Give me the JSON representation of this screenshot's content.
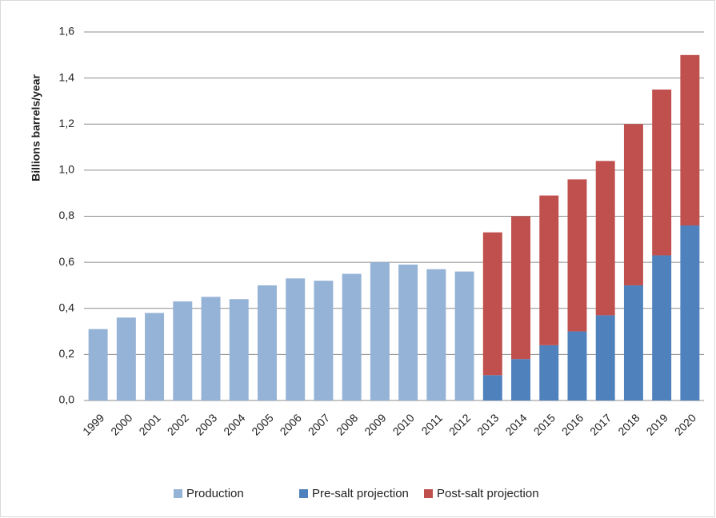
{
  "chart_data": {
    "type": "stacked-bar",
    "y_label": "Billions barrels/year",
    "categories": [
      "1999",
      "2000",
      "2001",
      "2002",
      "2003",
      "2004",
      "2005",
      "2006",
      "2007",
      "2008",
      "2009",
      "2010",
      "2011",
      "2012",
      "2013",
      "2014",
      "2015",
      "2016",
      "2017",
      "2018",
      "2019",
      "2020"
    ],
    "series": [
      {
        "name": "Production",
        "color": "#95b3d7",
        "values": [
          0.31,
          0.36,
          0.38,
          0.43,
          0.45,
          0.44,
          0.5,
          0.53,
          0.52,
          0.55,
          0.6,
          0.59,
          0.57,
          0.56,
          null,
          null,
          null,
          null,
          null,
          null,
          null,
          null
        ]
      },
      {
        "name": "Pre-salt projection",
        "color": "#4f81bd",
        "values": [
          null,
          null,
          null,
          null,
          null,
          null,
          null,
          null,
          null,
          null,
          null,
          null,
          null,
          null,
          0.11,
          0.18,
          0.24,
          0.3,
          0.37,
          0.5,
          0.63,
          0.76
        ]
      },
      {
        "name": "Post-salt projection",
        "color": "#c0504d",
        "values": [
          null,
          null,
          null,
          null,
          null,
          null,
          null,
          null,
          null,
          null,
          null,
          null,
          null,
          null,
          0.62,
          0.62,
          0.65,
          0.66,
          0.67,
          0.7,
          0.72,
          0.74
        ]
      }
    ],
    "ylim": [
      0,
      1.6
    ],
    "yticks": [
      {
        "value": 0,
        "label": "0,0"
      },
      {
        "value": 0.2,
        "label": "0,2"
      },
      {
        "value": 0.4,
        "label": "0,4"
      },
      {
        "value": 0.6,
        "label": "0,6"
      },
      {
        "value": 0.8,
        "label": "0,8"
      },
      {
        "value": 1.0,
        "label": "1,0"
      },
      {
        "value": 1.2,
        "label": "1,2"
      },
      {
        "value": 1.4,
        "label": "1,4"
      },
      {
        "value": 1.6,
        "label": "1,6"
      }
    ],
    "grid": true,
    "legend": "bottom"
  }
}
